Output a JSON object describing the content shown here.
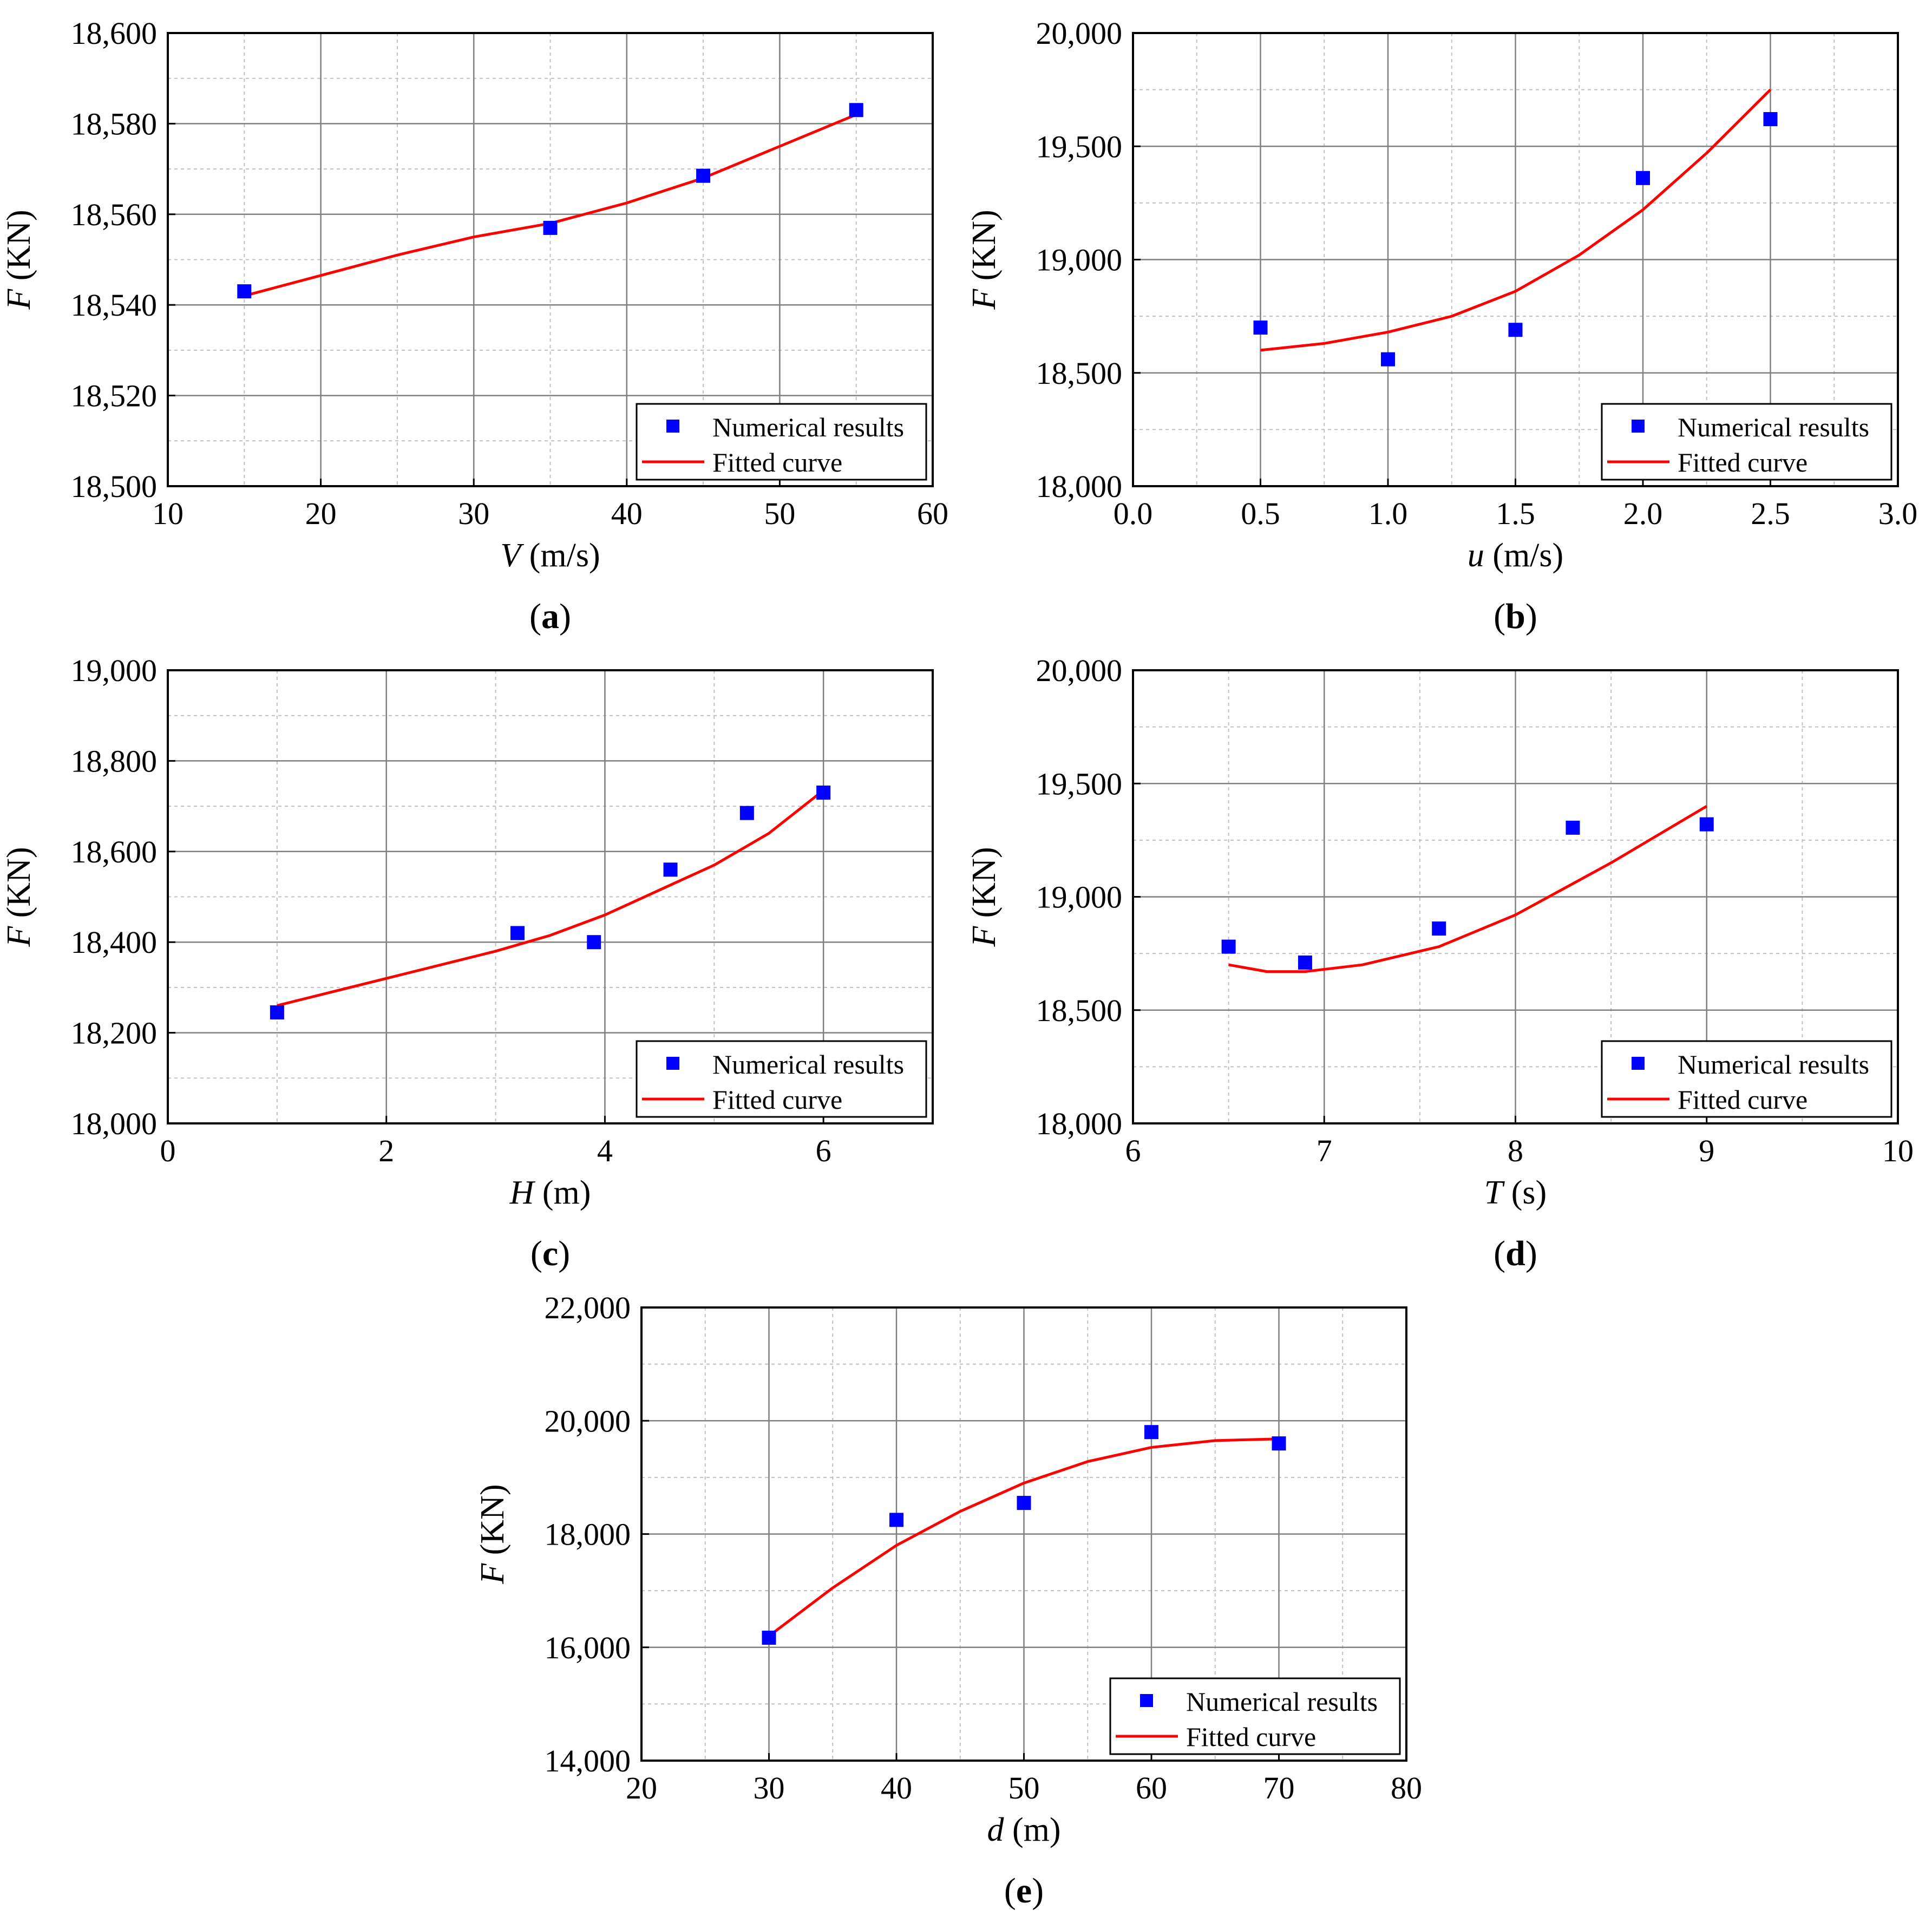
{
  "colors": {
    "marker": "#0000ff",
    "curve": "#ff0000",
    "grid_major": "#808080",
    "grid_minor": "#c0c0c0",
    "frame": "#000000"
  },
  "chart_data": [
    {
      "id": "a",
      "panel_label": "a",
      "type": "scatter",
      "ylabel_var": "F",
      "ylabel_unit": " (KN)",
      "xlabel_var": "V",
      "xlabel_unit": " (m/s)",
      "xlim": [
        10,
        60
      ],
      "ylim": [
        18500,
        18600
      ],
      "xticks": [
        10,
        20,
        30,
        40,
        50,
        60
      ],
      "xtick_labels": [
        "10",
        "20",
        "30",
        "40",
        "50",
        "60"
      ],
      "yticks": [
        18500,
        18520,
        18540,
        18560,
        18580,
        18600
      ],
      "ytick_labels": [
        "18,500",
        "18,520",
        "18,540",
        "18,560",
        "18,580",
        "18,600"
      ],
      "legend": {
        "position": "bottom-right",
        "entries": [
          "Numerical results",
          "Fitted curve"
        ]
      },
      "series": [
        {
          "name": "Numerical results",
          "kind": "markers",
          "x": [
            15,
            35,
            45,
            55
          ],
          "y": [
            18543,
            18557,
            18568.5,
            18583
          ]
        },
        {
          "name": "Fitted curve",
          "kind": "line",
          "x": [
            15,
            20,
            25,
            30,
            35,
            40,
            45,
            50,
            55
          ],
          "y": [
            18542,
            18546.5,
            18551,
            18555,
            18558,
            18562.5,
            18568,
            18575,
            18582
          ]
        }
      ]
    },
    {
      "id": "b",
      "panel_label": "b",
      "type": "scatter",
      "ylabel_var": "F",
      "ylabel_unit": " (KN)",
      "xlabel_var": "u",
      "xlabel_unit": " (m/s)",
      "xlim": [
        0,
        3
      ],
      "ylim": [
        18000,
        20000
      ],
      "xticks": [
        0,
        0.5,
        1,
        1.5,
        2,
        2.5,
        3
      ],
      "xtick_labels": [
        "0.0",
        "0.5",
        "1.0",
        "1.5",
        "2.0",
        "2.5",
        "3.0"
      ],
      "yticks": [
        18000,
        18500,
        19000,
        19500,
        20000
      ],
      "ytick_labels": [
        "18,000",
        "18,500",
        "19,000",
        "19,500",
        "20,000"
      ],
      "legend": {
        "position": "bottom-right",
        "entries": [
          "Numerical results",
          "Fitted curve"
        ]
      },
      "series": [
        {
          "name": "Numerical results",
          "kind": "markers",
          "x": [
            0.5,
            1.0,
            1.5,
            2.0,
            2.5
          ],
          "y": [
            18700,
            18560,
            18690,
            19360,
            19620
          ]
        },
        {
          "name": "Fitted curve",
          "kind": "line",
          "x": [
            0.5,
            0.75,
            1.0,
            1.25,
            1.5,
            1.75,
            2.0,
            2.25,
            2.5
          ],
          "y": [
            18600,
            18630,
            18680,
            18750,
            18860,
            19020,
            19220,
            19470,
            19750
          ]
        }
      ]
    },
    {
      "id": "c",
      "panel_label": "c",
      "type": "scatter",
      "ylabel_var": "F",
      "ylabel_unit": " (KN)",
      "xlabel_var": "H",
      "xlabel_unit": " (m)",
      "xlim": [
        0,
        7
      ],
      "ylim": [
        18000,
        19000
      ],
      "xticks": [
        0,
        2,
        4,
        6
      ],
      "xtick_labels": [
        "0",
        "2",
        "4",
        "6"
      ],
      "yticks": [
        18000,
        18200,
        18400,
        18600,
        18800,
        19000
      ],
      "ytick_labels": [
        "18,000",
        "18,200",
        "18,400",
        "18,600",
        "18,800",
        "19,000"
      ],
      "legend": {
        "position": "bottom-right",
        "entries": [
          "Numerical results",
          "Fitted curve"
        ]
      },
      "series": [
        {
          "name": "Numerical results",
          "kind": "markers",
          "x": [
            1.0,
            3.2,
            3.9,
            4.6,
            5.3,
            6.0
          ],
          "y": [
            18245,
            18420,
            18400,
            18560,
            18685,
            18730
          ]
        },
        {
          "name": "Fitted curve",
          "kind": "line",
          "x": [
            1.0,
            2.0,
            3.0,
            3.5,
            4.0,
            4.5,
            5.0,
            5.5,
            6.0
          ],
          "y": [
            18260,
            18320,
            18380,
            18415,
            18460,
            18515,
            18570,
            18640,
            18735
          ]
        }
      ]
    },
    {
      "id": "d",
      "panel_label": "d",
      "type": "scatter",
      "ylabel_var": "F",
      "ylabel_unit": " (KN)",
      "xlabel_var": "T",
      "xlabel_unit": " (s)",
      "xlim": [
        6,
        10
      ],
      "ylim": [
        18000,
        20000
      ],
      "xticks": [
        6,
        7,
        8,
        9,
        10
      ],
      "xtick_labels": [
        "6",
        "7",
        "8",
        "9",
        "10"
      ],
      "yticks": [
        18000,
        18500,
        19000,
        19500,
        20000
      ],
      "ytick_labels": [
        "18,000",
        "18,500",
        "19,000",
        "19,500",
        "20,000"
      ],
      "legend": {
        "position": "bottom-right",
        "entries": [
          "Numerical results",
          "Fitted curve"
        ]
      },
      "series": [
        {
          "name": "Numerical results",
          "kind": "markers",
          "x": [
            6.5,
            6.9,
            7.6,
            8.3,
            9.0
          ],
          "y": [
            18780,
            18710,
            18860,
            19305,
            19320
          ]
        },
        {
          "name": "Fitted curve",
          "kind": "line",
          "x": [
            6.5,
            6.7,
            6.9,
            7.2,
            7.6,
            8.0,
            8.5,
            9.0
          ],
          "y": [
            18700,
            18670,
            18670,
            18700,
            18780,
            18920,
            19150,
            19400
          ]
        }
      ]
    },
    {
      "id": "e",
      "panel_label": "e",
      "type": "scatter",
      "ylabel_var": "F",
      "ylabel_unit": " (KN)",
      "xlabel_var": "d",
      "xlabel_unit": " (m)",
      "xlim": [
        20,
        80
      ],
      "ylim": [
        14000,
        22000
      ],
      "xticks": [
        20,
        30,
        40,
        50,
        60,
        70,
        80
      ],
      "xtick_labels": [
        "20",
        "30",
        "40",
        "50",
        "60",
        "70",
        "80"
      ],
      "yticks": [
        14000,
        16000,
        18000,
        20000,
        22000
      ],
      "ytick_labels": [
        "14,000",
        "16,000",
        "18,000",
        "20,000",
        "22,000"
      ],
      "legend": {
        "position": "bottom-right",
        "entries": [
          "Numerical results",
          "Fitted curve"
        ]
      },
      "series": [
        {
          "name": "Numerical results",
          "kind": "markers",
          "x": [
            30,
            40,
            50,
            60,
            70
          ],
          "y": [
            16170,
            18250,
            18550,
            19800,
            19600
          ]
        },
        {
          "name": "Fitted curve",
          "kind": "line",
          "x": [
            30,
            35,
            40,
            45,
            50,
            55,
            60,
            65,
            70
          ],
          "y": [
            16200,
            17050,
            17800,
            18400,
            18900,
            19280,
            19530,
            19650,
            19680
          ]
        }
      ]
    }
  ]
}
